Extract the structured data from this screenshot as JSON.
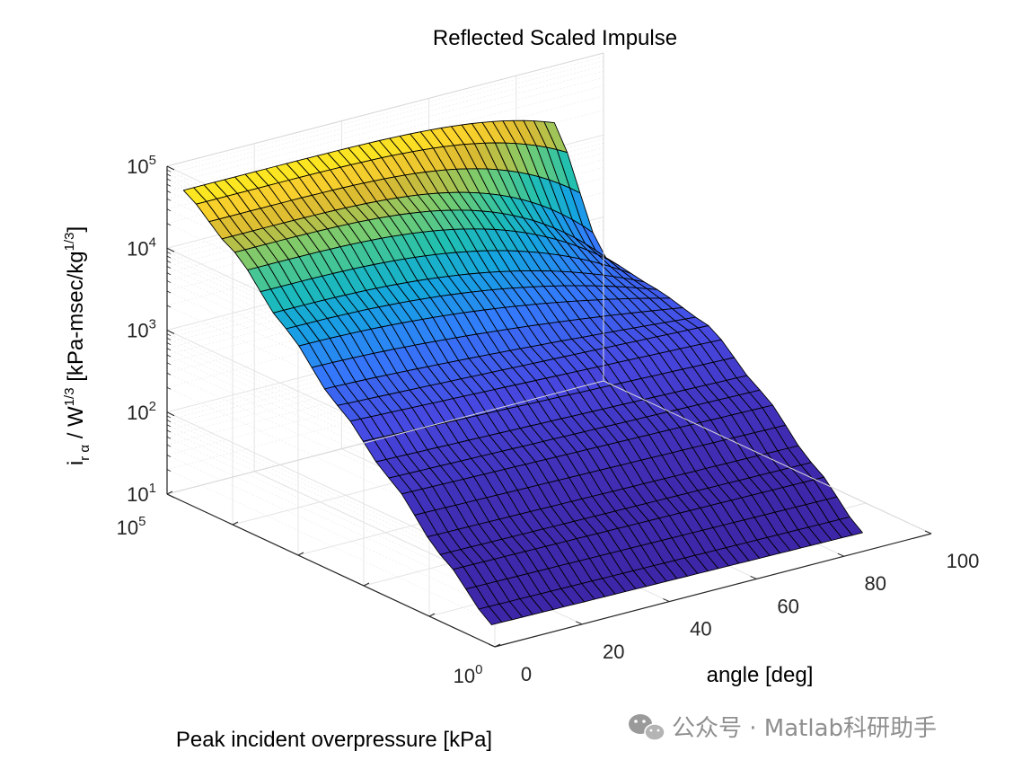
{
  "chart_data": {
    "type": "surface3d",
    "title": "Reflected Scaled Impulse",
    "xlabel": "angle [deg]",
    "ylabel": "Peak incident overpressure [kPa]",
    "zlabel": {
      "base": "i",
      "sub": "r α",
      "mid": " / W",
      "sup1": "1/3",
      "unit": " [kPa-msec/kg",
      "sup2": "1/3",
      "close": "]"
    },
    "xlim": [
      0,
      100
    ],
    "xticks": [
      "0",
      "20",
      "40",
      "60",
      "80",
      "100"
    ],
    "ylim_log10": [
      0,
      5
    ],
    "yticks": [
      {
        "base": "10",
        "exp": "0"
      },
      {
        "base": "10",
        "exp": "5"
      }
    ],
    "zlim_log10": [
      1,
      5
    ],
    "zticks": [
      {
        "base": "10",
        "exp": "1"
      },
      {
        "base": "10",
        "exp": "2"
      },
      {
        "base": "10",
        "exp": "3"
      },
      {
        "base": "10",
        "exp": "4"
      },
      {
        "base": "10",
        "exp": "5"
      }
    ],
    "grid": true,
    "colormap": "parula",
    "surface": {
      "angle_range_deg": [
        0,
        85
      ],
      "angle_steps": 36,
      "pressure_log10_range": [
        0.05,
        4.75
      ],
      "pressure_steps": 24,
      "log10_impulse_at_0deg": [
        [
          0.05,
          1.25
        ],
        [
          0.8,
          1.8
        ],
        [
          1.6,
          2.45
        ],
        [
          2.4,
          3.05
        ],
        [
          3.2,
          3.7
        ],
        [
          4.0,
          4.35
        ],
        [
          4.75,
          4.8
        ]
      ],
      "log10_impulse_at_85deg": [
        [
          0.05,
          1.2
        ],
        [
          0.8,
          1.75
        ],
        [
          1.6,
          2.35
        ],
        [
          2.4,
          2.85
        ],
        [
          3.2,
          3.0
        ],
        [
          4.0,
          3.1
        ],
        [
          4.75,
          4.45
        ]
      ]
    }
  },
  "watermark": {
    "icon": "wechat-icon",
    "text": "公众号 · Matlab科研助手"
  }
}
